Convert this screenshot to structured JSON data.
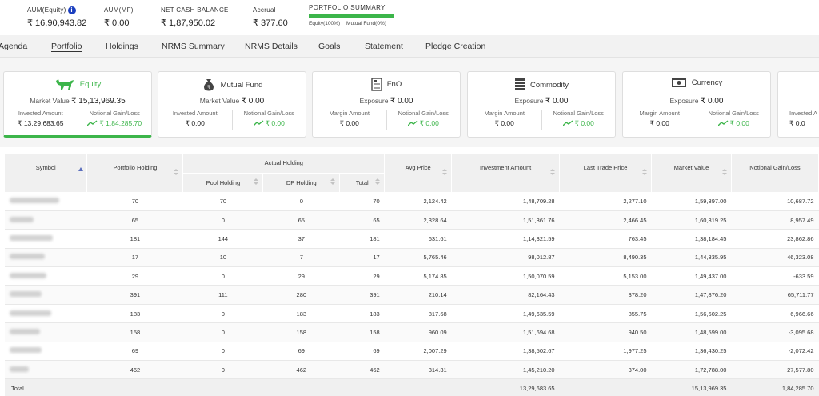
{
  "summary": {
    "aum_equity_label": "AUM(Equity)",
    "aum_equity_value": "₹ 16,90,943.82",
    "aum_mf_label": "AUM(MF)",
    "aum_mf_value": "₹ 0.00",
    "net_cash_label": "NET CASH BALANCE",
    "net_cash_value": "₹ 1,87,950.02",
    "accrual_label": "Accrual",
    "accrual_value": "₹ 377.60",
    "portfolio_summary_label": "PORTFOLIO SUMMARY",
    "equity_pct": "Equity(100%)",
    "mf_pct": "Mutual Fund(0%)",
    "equity_fraction": 1.0
  },
  "tabs": [
    {
      "label": "Agenda"
    },
    {
      "label": "Portfolio"
    },
    {
      "label": "Holdings"
    },
    {
      "label": "NRMS Summary"
    },
    {
      "label": "NRMS Details"
    },
    {
      "label": "Goals"
    },
    {
      "label": "Statement"
    },
    {
      "label": "Pledge Creation"
    }
  ],
  "active_tab": "Portfolio",
  "cards": [
    {
      "title": "Equity",
      "icon": "bull-icon",
      "main_label": "Market Value",
      "main_value": "₹ 15,13,969.35",
      "left_label": "Invested Amount",
      "left_value": "₹ 13,29,683.65",
      "right_label": "Notional Gain/Loss",
      "right_value": "₹ 1,84,285.70"
    },
    {
      "title": "Mutual Fund",
      "icon": "money-bag-icon",
      "main_label": "Market Value",
      "main_value": "₹ 0.00",
      "left_label": "Invested Amount",
      "left_value": "₹ 0.00",
      "right_label": "Notional Gain/Loss",
      "right_value": "₹ 0.00"
    },
    {
      "title": "FnO",
      "icon": "document-icon",
      "main_label": "Exposure",
      "main_value": "₹ 0.00",
      "left_label": "Margin Amount",
      "left_value": "₹ 0.00",
      "right_label": "Notional Gain/Loss",
      "right_value": "₹ 0.00"
    },
    {
      "title": "Commodity",
      "icon": "stack-icon",
      "main_label": "Exposure",
      "main_value": "₹ 0.00",
      "left_label": "Margin Amount",
      "left_value": "₹ 0.00",
      "right_label": "Notional Gain/Loss",
      "right_value": "₹ 0.00"
    },
    {
      "title": "Currency",
      "icon": "banknote-icon",
      "main_label": "Exposure",
      "main_value": "₹ 0.00",
      "left_label": "Margin Amount",
      "left_value": "₹ 0.00",
      "right_label": "Notional Gain/Loss",
      "right_value": "₹ 0.00"
    },
    {
      "title": "",
      "icon": "",
      "main_label": "",
      "main_value": "",
      "left_label": "Invested A",
      "left_value": "₹ 0.0",
      "right_label": "",
      "right_value": ""
    }
  ],
  "table": {
    "headers": {
      "symbol": "Symbol",
      "portfolio_holding": "Portfolio Holding",
      "actual_holding": "Actual Holding",
      "pool_holding": "Pool Holding",
      "dp_holding": "DP Holding",
      "total": "Total",
      "avg_price": "Avg Price",
      "investment_amount": "Investment Amount",
      "last_trade_price": "Last Trade Price",
      "market_value": "Market Value",
      "notional_gain_loss": "Notional Gain/Loss"
    },
    "rows": [
      {
        "portfolio": "70",
        "pool": "70",
        "dp": "0",
        "total": "70",
        "avg": "2,124.42",
        "invest": "1,48,709.28",
        "ltp": "2,277.10",
        "mv": "1,59,397.00",
        "gain": "10,687.72"
      },
      {
        "portfolio": "65",
        "pool": "0",
        "dp": "65",
        "total": "65",
        "avg": "2,328.64",
        "invest": "1,51,361.76",
        "ltp": "2,466.45",
        "mv": "1,60,319.25",
        "gain": "8,957.49"
      },
      {
        "portfolio": "181",
        "pool": "144",
        "dp": "37",
        "total": "181",
        "avg": "631.61",
        "invest": "1,14,321.59",
        "ltp": "763.45",
        "mv": "1,38,184.45",
        "gain": "23,862.86"
      },
      {
        "portfolio": "17",
        "pool": "10",
        "dp": "7",
        "total": "17",
        "avg": "5,765.46",
        "invest": "98,012.87",
        "ltp": "8,490.35",
        "mv": "1,44,335.95",
        "gain": "46,323.08"
      },
      {
        "portfolio": "29",
        "pool": "0",
        "dp": "29",
        "total": "29",
        "avg": "5,174.85",
        "invest": "1,50,070.59",
        "ltp": "5,153.00",
        "mv": "1,49,437.00",
        "gain": "-633.59"
      },
      {
        "portfolio": "391",
        "pool": "111",
        "dp": "280",
        "total": "391",
        "avg": "210.14",
        "invest": "82,164.43",
        "ltp": "378.20",
        "mv": "1,47,876.20",
        "gain": "65,711.77"
      },
      {
        "portfolio": "183",
        "pool": "0",
        "dp": "183",
        "total": "183",
        "avg": "817.68",
        "invest": "1,49,635.59",
        "ltp": "855.75",
        "mv": "1,56,602.25",
        "gain": "6,966.66"
      },
      {
        "portfolio": "158",
        "pool": "0",
        "dp": "158",
        "total": "158",
        "avg": "960.09",
        "invest": "1,51,694.68",
        "ltp": "940.50",
        "mv": "1,48,599.00",
        "gain": "-3,095.68"
      },
      {
        "portfolio": "69",
        "pool": "0",
        "dp": "69",
        "total": "69",
        "avg": "2,007.29",
        "invest": "1,38,502.67",
        "ltp": "1,977.25",
        "mv": "1,36,430.25",
        "gain": "-2,072.42"
      },
      {
        "portfolio": "462",
        "pool": "0",
        "dp": "462",
        "total": "462",
        "avg": "314.31",
        "invest": "1,45,210.20",
        "ltp": "374.00",
        "mv": "1,72,788.00",
        "gain": "27,577.80"
      }
    ],
    "footer": {
      "label": "Total",
      "invest": "13,29,683.65",
      "mv": "15,13,969.35",
      "gain": "1,84,285.70"
    }
  },
  "colors": {
    "accent_green": "#3cb54a",
    "info_blue": "#1b3fbf"
  }
}
